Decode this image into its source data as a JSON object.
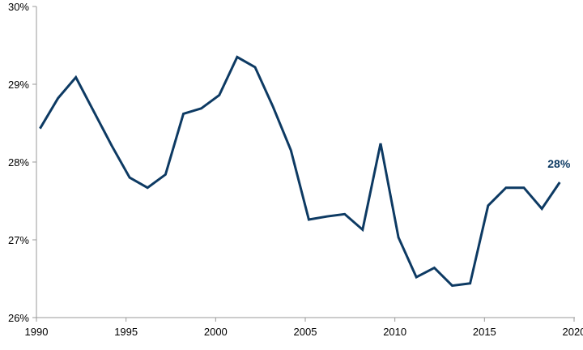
{
  "chart_data": {
    "type": "line",
    "title": "",
    "xlabel": "",
    "ylabel": "",
    "xlim": [
      1990,
      2020
    ],
    "ylim": [
      26,
      30
    ],
    "x_ticks": [
      1990,
      1995,
      2000,
      2005,
      2010,
      2015,
      2020
    ],
    "y_ticks": [
      26,
      27,
      28,
      29,
      30
    ],
    "x_tick_labels": [
      "1990",
      "1995",
      "2000",
      "2005",
      "2010",
      "2015",
      "2020"
    ],
    "y_tick_labels": [
      "26%",
      "27%",
      "28%",
      "29%",
      "30%"
    ],
    "grid": false,
    "legend": "none",
    "series": [
      {
        "color": "#0d3a63",
        "x": [
          1990.2,
          1991.2,
          1992.2,
          1993.2,
          1994.2,
          1995.2,
          1996.2,
          1997.2,
          1998.2,
          1999.2,
          2000.2,
          2001.2,
          2002.2,
          2003.2,
          2004.2,
          2005.2,
          2006.2,
          2007.2,
          2008.2,
          2009.2,
          2010.2,
          2011.2,
          2012.2,
          2013.2,
          2014.2,
          2015.2,
          2016.2,
          2017.2,
          2018.2,
          2019.2
        ],
        "values": [
          28.43,
          28.82,
          29.09,
          28.65,
          28.21,
          27.8,
          27.67,
          27.84,
          28.62,
          28.69,
          28.86,
          29.35,
          29.22,
          28.71,
          28.15,
          27.26,
          27.3,
          27.33,
          27.13,
          28.24,
          27.03,
          26.52,
          26.64,
          26.41,
          26.44,
          27.44,
          27.67,
          27.67,
          27.4,
          27.74
        ]
      }
    ],
    "annotations": [
      {
        "text": "28%",
        "x": 2019.2,
        "y": 27.74,
        "color": "#0d3a63"
      }
    ]
  }
}
